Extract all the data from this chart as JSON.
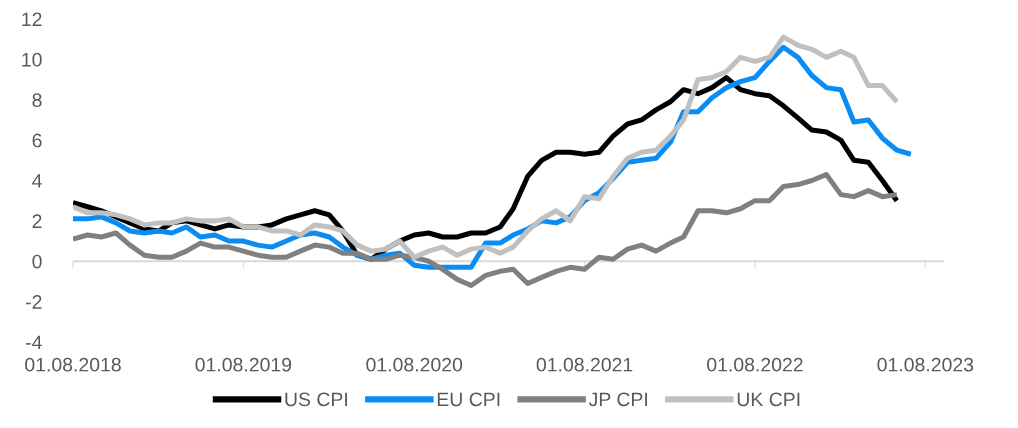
{
  "chart_data": {
    "type": "line",
    "x": [
      "2018-08",
      "2018-09",
      "2018-10",
      "2018-11",
      "2018-12",
      "2019-01",
      "2019-02",
      "2019-03",
      "2019-04",
      "2019-05",
      "2019-06",
      "2019-07",
      "2019-08",
      "2019-09",
      "2019-10",
      "2019-11",
      "2019-12",
      "2020-01",
      "2020-02",
      "2020-03",
      "2020-04",
      "2020-05",
      "2020-06",
      "2020-07",
      "2020-08",
      "2020-09",
      "2020-10",
      "2020-11",
      "2020-12",
      "2021-01",
      "2021-02",
      "2021-03",
      "2021-04",
      "2021-05",
      "2021-06",
      "2021-07",
      "2021-08",
      "2021-09",
      "2021-10",
      "2021-11",
      "2021-12",
      "2022-01",
      "2022-02",
      "2022-03",
      "2022-04",
      "2022-05",
      "2022-06",
      "2022-07",
      "2022-08",
      "2022-09",
      "2022-10",
      "2022-11",
      "2022-12",
      "2023-01",
      "2023-02",
      "2023-03",
      "2023-04",
      "2023-05",
      "2023-06",
      "2023-07"
    ],
    "series": [
      {
        "name": "US CPI",
        "color": "#000000",
        "values": [
          2.9,
          2.7,
          2.5,
          2.2,
          1.9,
          1.6,
          1.5,
          1.9,
          2.0,
          1.8,
          1.6,
          1.8,
          1.7,
          1.7,
          1.8,
          2.1,
          2.3,
          2.5,
          2.3,
          1.5,
          0.3,
          0.1,
          0.6,
          1.0,
          1.3,
          1.4,
          1.2,
          1.2,
          1.4,
          1.4,
          1.7,
          2.6,
          4.2,
          5.0,
          5.4,
          5.4,
          5.3,
          5.4,
          6.2,
          6.8,
          7.0,
          7.5,
          7.9,
          8.5,
          8.3,
          8.6,
          9.1,
          8.5,
          8.3,
          8.2,
          7.7,
          7.1,
          6.5,
          6.4,
          6.0,
          5.0,
          4.9,
          4.0,
          3.0,
          null
        ]
      },
      {
        "name": "EU CPI",
        "color": "#0a8cf5",
        "values": [
          2.1,
          2.1,
          2.2,
          1.9,
          1.5,
          1.4,
          1.5,
          1.4,
          1.7,
          1.2,
          1.3,
          1.0,
          1.0,
          0.8,
          0.7,
          1.0,
          1.3,
          1.4,
          1.2,
          0.7,
          0.3,
          0.1,
          0.3,
          0.4,
          -0.2,
          -0.3,
          -0.3,
          -0.3,
          -0.3,
          0.9,
          0.9,
          1.3,
          1.6,
          2.0,
          1.9,
          2.2,
          3.0,
          3.4,
          4.1,
          4.9,
          5.0,
          5.1,
          5.9,
          7.4,
          7.4,
          8.1,
          8.6,
          8.9,
          9.1,
          9.9,
          10.6,
          10.1,
          9.2,
          8.6,
          8.5,
          6.9,
          7.0,
          6.1,
          5.5,
          5.3
        ]
      },
      {
        "name": "JP CPI",
        "color": "#808080",
        "values": [
          1.1,
          1.3,
          1.2,
          1.4,
          0.8,
          0.3,
          0.2,
          0.2,
          0.5,
          0.9,
          0.7,
          0.7,
          0.5,
          0.3,
          0.2,
          0.2,
          0.5,
          0.8,
          0.7,
          0.4,
          0.4,
          0.1,
          0.1,
          0.3,
          0.2,
          0.0,
          -0.4,
          -0.9,
          -1.2,
          -0.7,
          -0.5,
          -0.4,
          -1.1,
          -0.8,
          -0.5,
          -0.3,
          -0.4,
          0.2,
          0.1,
          0.6,
          0.8,
          0.5,
          0.9,
          1.2,
          2.5,
          2.5,
          2.4,
          2.6,
          3.0,
          3.0,
          3.7,
          3.8,
          4.0,
          4.3,
          3.3,
          3.2,
          3.5,
          3.2,
          3.3,
          null
        ]
      },
      {
        "name": "UK CPI",
        "color": "#c0c0c0",
        "values": [
          2.7,
          2.4,
          2.4,
          2.3,
          2.1,
          1.8,
          1.9,
          1.9,
          2.1,
          2.0,
          2.0,
          2.1,
          1.7,
          1.7,
          1.5,
          1.5,
          1.3,
          1.8,
          1.7,
          1.5,
          0.8,
          0.5,
          0.6,
          1.0,
          0.2,
          0.5,
          0.7,
          0.3,
          0.6,
          0.7,
          0.4,
          0.7,
          1.5,
          2.1,
          2.5,
          2.0,
          3.2,
          3.1,
          4.2,
          5.1,
          5.4,
          5.5,
          6.2,
          7.0,
          9.0,
          9.1,
          9.4,
          10.1,
          9.9,
          10.1,
          11.1,
          10.7,
          10.5,
          10.1,
          10.4,
          10.1,
          8.7,
          8.7,
          7.9,
          null
        ]
      }
    ],
    "xlim": [
      "2018-08",
      "2023-09-10"
    ],
    "xticks": [
      {
        "value": "2018-08",
        "label": "01.08.2018"
      },
      {
        "value": "2019-08",
        "label": "01.08.2019"
      },
      {
        "value": "2020-08",
        "label": "01.08.2020"
      },
      {
        "value": "2021-08",
        "label": "01.08.2021"
      },
      {
        "value": "2022-08",
        "label": "01.08.2022"
      },
      {
        "value": "2023-08",
        "label": "01.08.2023"
      }
    ],
    "ylim": [
      -4,
      12
    ],
    "yticks": [
      {
        "value": -4,
        "label": "-4"
      },
      {
        "value": -2,
        "label": "-2"
      },
      0,
      2,
      4,
      6,
      8,
      10,
      12
    ],
    "ref_lines": [
      {
        "axis": "y",
        "value": 0,
        "color": "#d9d9d9",
        "line_style": "solid"
      }
    ],
    "grid": false,
    "legend": "bottom",
    "marker": "none",
    "line_style": "solid"
  }
}
